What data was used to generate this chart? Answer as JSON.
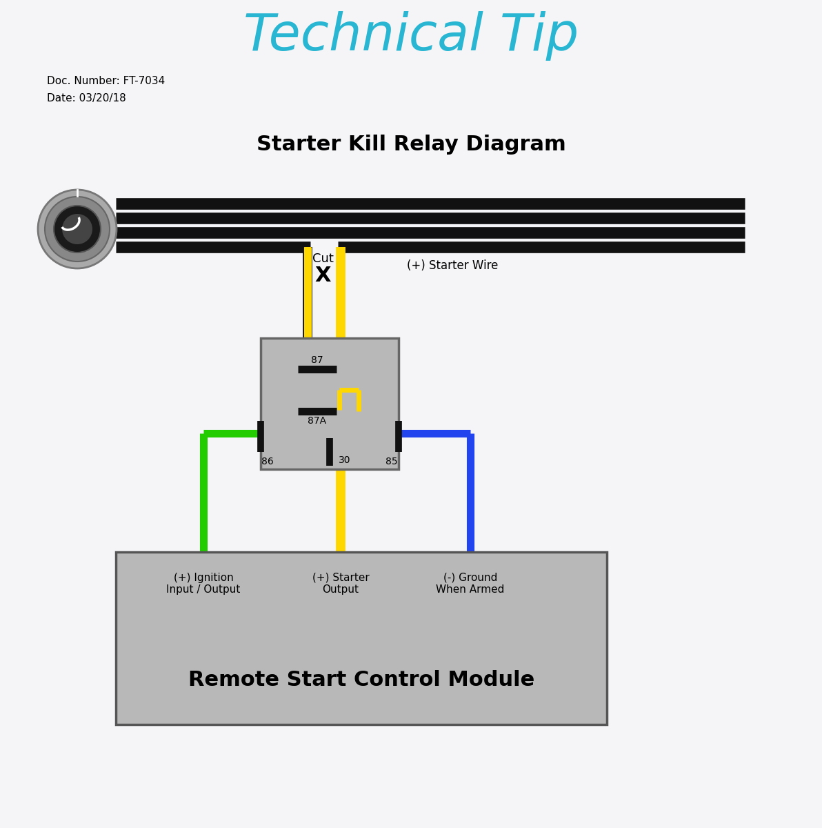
{
  "title": "Technical Tip",
  "subtitle": "Starter Kill Relay Diagram",
  "doc_number": "Doc. Number: FT-7034",
  "doc_date": "Date: 03/20/18",
  "title_color": "#29B6D2",
  "bg_color": "#F5F5F8",
  "wire_black": "#111111",
  "wire_yellow": "#FFD700",
  "wire_green": "#22CC00",
  "wire_blue": "#2244EE",
  "relay_fill": "#B8B8B8",
  "relay_edge": "#666666",
  "module_fill": "#B8B8B8",
  "module_edge": "#555555",
  "module_label": "Remote Start Control Module",
  "port_label_1": "(+) Ignition\nInput / Output",
  "port_label_2": "(+) Starter\nOutput",
  "port_label_3": "(-) Ground\nWhen Armed",
  "starter_wire_label": "(+) Starter Wire",
  "cut_label": "Cut",
  "cut_symbol": "X",
  "pin_86": "86",
  "pin_85": "85",
  "pin_87": "87",
  "pin_87a": "87A",
  "pin_30": "30"
}
